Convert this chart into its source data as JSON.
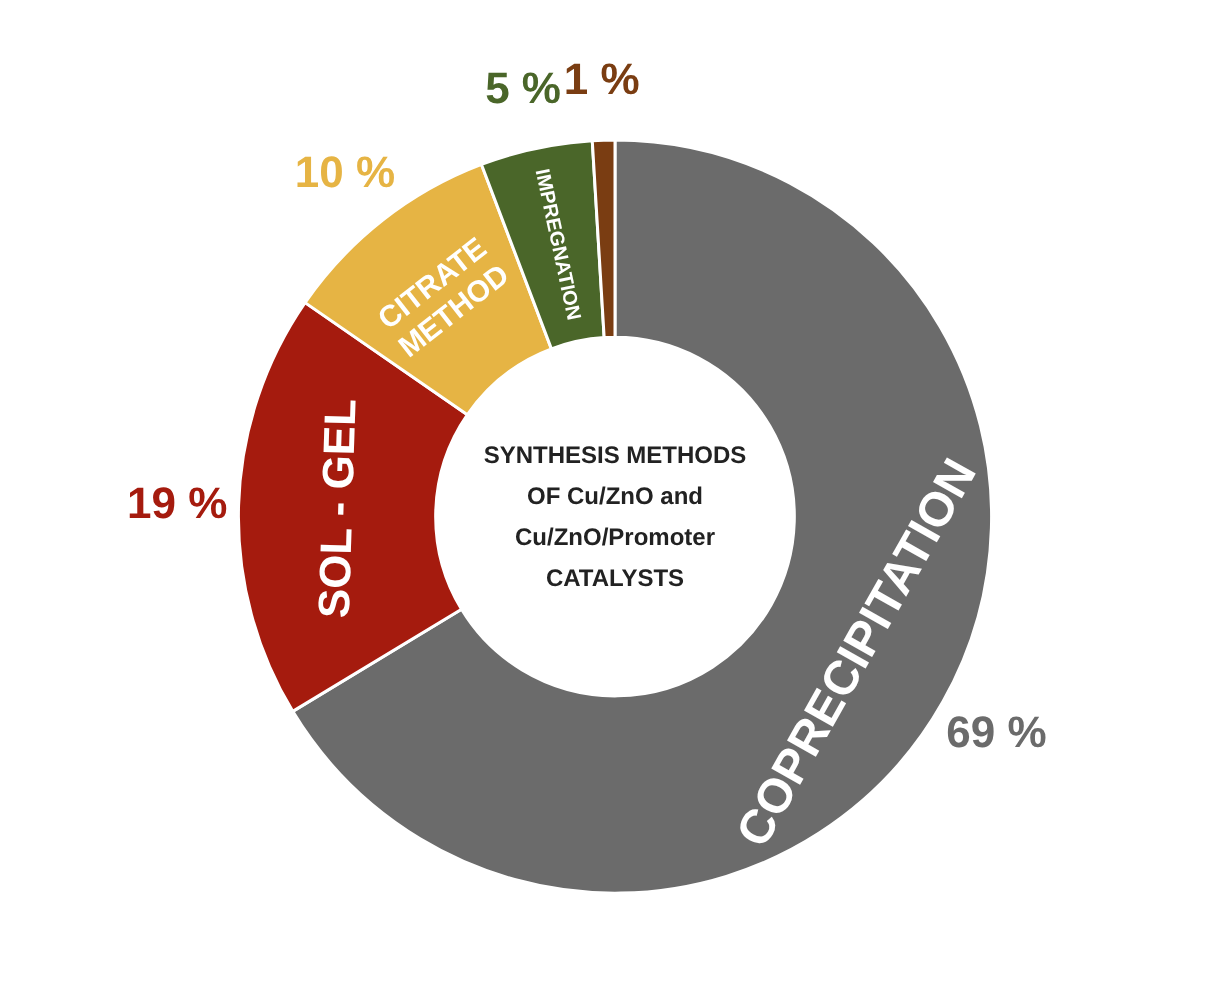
{
  "chart_data": {
    "type": "donut",
    "title": "SYNTHESIS METHODS OF Cu/ZnO and Cu/ZnO/Promoter CATALYSTS",
    "categories": [
      "COPRECIPITATION",
      "SOL - GEL",
      "CITRATE METHOD",
      "IMPREGNATION",
      null
    ],
    "values": [
      69,
      19,
      10,
      5,
      1
    ],
    "colors": [
      "#6b6b6b",
      "#a51b0e",
      "#e6b444",
      "#4a6629",
      "#7a3d12"
    ],
    "value_labels": [
      "69 %",
      "19 %",
      "10 %",
      "5 %",
      "1 %"
    ],
    "legend": false
  }
}
